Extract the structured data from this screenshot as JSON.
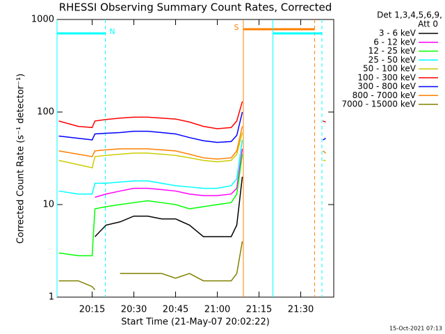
{
  "chart_data": {
    "type": "line",
    "title": "RHESSI Observing Summary Count Rates, Corrected",
    "xlabel": "Start Time (21-May-07 20:02:22)",
    "ylabel": "Corrected Count Rate (s⁻¹ detector⁻¹)",
    "legend_header": [
      "Det 1,3,4,5,6,9,",
      "Att 0"
    ],
    "footer": "15-Oct-2021 07:13",
    "log_y": true,
    "legend": "right",
    "xlim": [
      "20:02:22",
      "21:41:52"
    ],
    "xticks": [
      "20:15",
      "20:30",
      "20:45",
      "21:00",
      "21:15",
      "21:30"
    ],
    "ylim": [
      1,
      1000
    ],
    "yticks": [
      1,
      10,
      100,
      1000
    ],
    "x": [
      "20:03",
      "20:10",
      "20:15",
      "20:16",
      "20:20",
      "20:25",
      "20:30",
      "20:35",
      "20:40",
      "20:45",
      "20:50",
      "20:55",
      "21:00",
      "21:05",
      "21:07",
      "21:09",
      "21:20",
      "21:38",
      "21:39"
    ],
    "series": [
      {
        "name": "3 - 6 keV",
        "color": "#000000",
        "values": [
          null,
          null,
          null,
          4.5,
          6,
          6.5,
          7.5,
          7.5,
          7,
          7,
          6,
          4.5,
          4.5,
          4.5,
          6,
          20,
          null,
          null,
          null
        ]
      },
      {
        "name": "6 - 12 keV",
        "color": "#ff00ff",
        "values": [
          null,
          null,
          null,
          12,
          13,
          14,
          15,
          15,
          14.5,
          14,
          13,
          12.5,
          12.5,
          13,
          15,
          40,
          null,
          null,
          null
        ]
      },
      {
        "name": "12 - 25 keV",
        "color": "#00ff00",
        "values": [
          3,
          2.8,
          2.8,
          9,
          9.5,
          10,
          10.5,
          11,
          10.5,
          10,
          9,
          9.5,
          10,
          10.5,
          13,
          35,
          null,
          null,
          null
        ]
      },
      {
        "name": "25 - 50 keV",
        "color": "#00ffff",
        "values": [
          14,
          13,
          13,
          17,
          17,
          17.5,
          18,
          18,
          17,
          16,
          15.5,
          15,
          15,
          16,
          19,
          50,
          null,
          null,
          null
        ]
      },
      {
        "name": "50 - 100 keV",
        "color": "#cccc00",
        "values": [
          30,
          27,
          25,
          33,
          34,
          35,
          36,
          36,
          35,
          34,
          32,
          30,
          29,
          30,
          35,
          60,
          null,
          30,
          30
        ]
      },
      {
        "name": "100 - 300 keV",
        "color": "#ff0000",
        "values": [
          80,
          70,
          68,
          80,
          83,
          86,
          88,
          88,
          86,
          84,
          78,
          70,
          66,
          68,
          80,
          130,
          null,
          80,
          78
        ]
      },
      {
        "name": "300 - 800 keV",
        "color": "#0000ff",
        "values": [
          55,
          52,
          50,
          58,
          59,
          60,
          62,
          62,
          60,
          58,
          53,
          49,
          47,
          48,
          56,
          100,
          null,
          50,
          52
        ]
      },
      {
        "name": "800 - 7000 keV",
        "color": "#ff8000",
        "values": [
          38,
          35,
          33,
          38,
          39,
          40,
          40,
          40,
          39,
          38,
          35,
          32,
          31,
          32,
          38,
          70,
          null,
          38,
          36
        ]
      },
      {
        "name": "7000 - 15000 keV",
        "color": "#808000",
        "values": [
          1.5,
          1.5,
          1.3,
          1.2,
          null,
          1.8,
          1.8,
          1.8,
          1.8,
          1.6,
          1.8,
          1.5,
          1.5,
          1.5,
          1.8,
          4,
          null,
          null,
          null
        ]
      }
    ],
    "intervals": [
      {
        "label": "N",
        "start": "20:02:22",
        "end": "20:19:45",
        "color": "#00ffff"
      },
      {
        "label": "S",
        "start": "21:09:22",
        "end": "21:35:00",
        "color": "#ff8000"
      },
      {
        "start": "21:20:00",
        "end": "21:37:37",
        "color": "#00ffff"
      }
    ]
  }
}
